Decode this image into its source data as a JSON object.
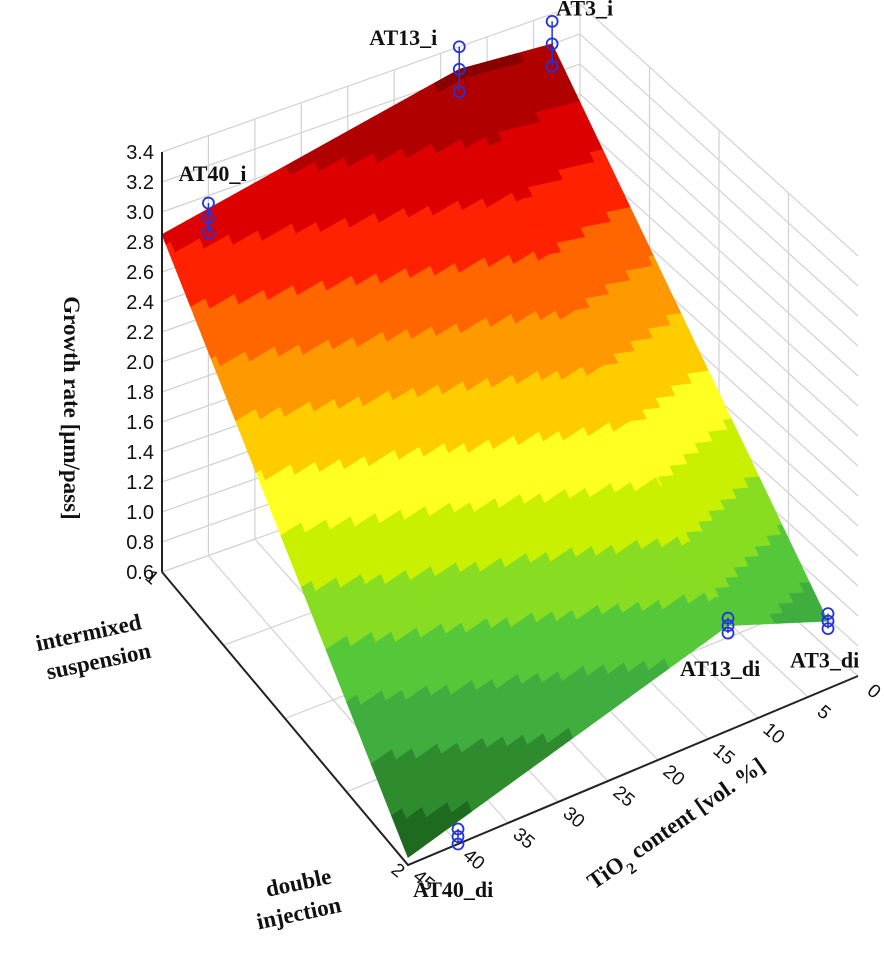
{
  "chart_data": {
    "type": "surface3d",
    "zlabel": "Growth rate [μm/pass]",
    "xlabel_main": "TiO",
    "xlabel_sub": "2",
    "xlabel_rest": " content [vol. %]",
    "x_ticks": [
      "0",
      "5",
      "10",
      "15",
      "20",
      "25",
      "30",
      "35",
      "40",
      "45"
    ],
    "y_ticks": [
      "1",
      "2"
    ],
    "y_categories": [
      {
        "lines": [
          "intermixed",
          "suspension"
        ]
      },
      {
        "lines": [
          "double",
          "injection"
        ]
      }
    ],
    "z_ticks": [
      "0.6",
      "0.8",
      "1.0",
      "1.2",
      "1.4",
      "1.6",
      "1.8",
      "2.0",
      "2.2",
      "2.4",
      "2.6",
      "2.8",
      "3.0",
      "3.2",
      "3.4"
    ],
    "zlim": [
      0.6,
      3.4
    ],
    "xlim": [
      0,
      45
    ],
    "points": [
      {
        "label": "AT3_i",
        "tio2": 3,
        "method": 1,
        "values": [
          3.05,
          3.2,
          3.35
        ]
      },
      {
        "label": "AT13_i",
        "tio2": 13,
        "method": 1,
        "values": [
          3.1,
          3.25,
          3.4
        ]
      },
      {
        "label": "AT40_i",
        "tio2": 40,
        "method": 1,
        "values": [
          2.75,
          2.85,
          2.95
        ]
      },
      {
        "label": "AT3_di",
        "tio2": 3,
        "method": 2,
        "values": [
          1.0,
          1.05,
          1.1
        ]
      },
      {
        "label": "AT13_di",
        "tio2": 13,
        "method": 2,
        "values": [
          1.25,
          1.3,
          1.35
        ]
      },
      {
        "label": "AT40_di",
        "tio2": 40,
        "method": 2,
        "values": [
          0.6,
          0.65,
          0.7
        ]
      }
    ],
    "surface_colors": [
      "#1e6a1e",
      "#2e8b2e",
      "#3fae3f",
      "#55c83a",
      "#88dd22",
      "#c8f000",
      "#ffff22",
      "#ffcc00",
      "#ff9900",
      "#ff6600",
      "#ff2200",
      "#dd0000",
      "#b00000",
      "#8a0000"
    ],
    "marker_color": "#2233dd",
    "grid": true
  }
}
